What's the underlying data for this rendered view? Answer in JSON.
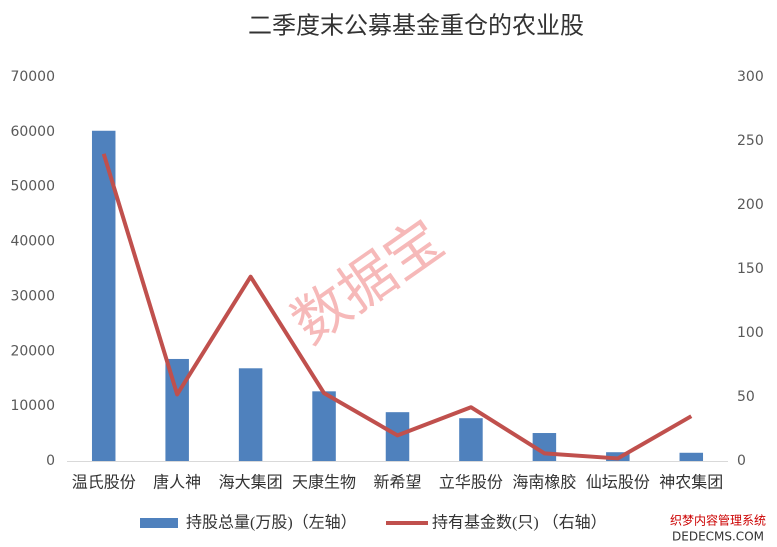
{
  "chart_data": {
    "type": "bar-line",
    "title": "二季度末公募基金重仓的农业股",
    "categories": [
      "温氏股份",
      "唐人神",
      "海大集团",
      "天康生物",
      "新希望",
      "立华股份",
      "海南橡胶",
      "仙坛股份",
      "神农集团"
    ],
    "series": [
      {
        "name": "持股总量(万股)（左轴）",
        "type": "bar",
        "color": "#4f81bd",
        "values": [
          60200,
          18600,
          16900,
          12700,
          8900,
          7800,
          5100,
          1600,
          1500
        ]
      },
      {
        "name": "持有基金数(只) （右轴）",
        "type": "line",
        "axis": "y2",
        "color": "#c0504d",
        "values": [
          240,
          52,
          144,
          53,
          20,
          42,
          6,
          2,
          35
        ]
      }
    ],
    "ylim": [
      0,
      70000
    ],
    "yticks": [
      0,
      10000,
      20000,
      30000,
      40000,
      50000,
      60000,
      70000
    ],
    "y2lim": [
      0,
      300
    ],
    "y2ticks": [
      0,
      50,
      100,
      150,
      200,
      250,
      300
    ],
    "grid": false,
    "legend": "bottom",
    "watermark": "数据宝",
    "corner_mark": [
      "织梦内容管理系统",
      "DEDECMS.COM"
    ]
  }
}
